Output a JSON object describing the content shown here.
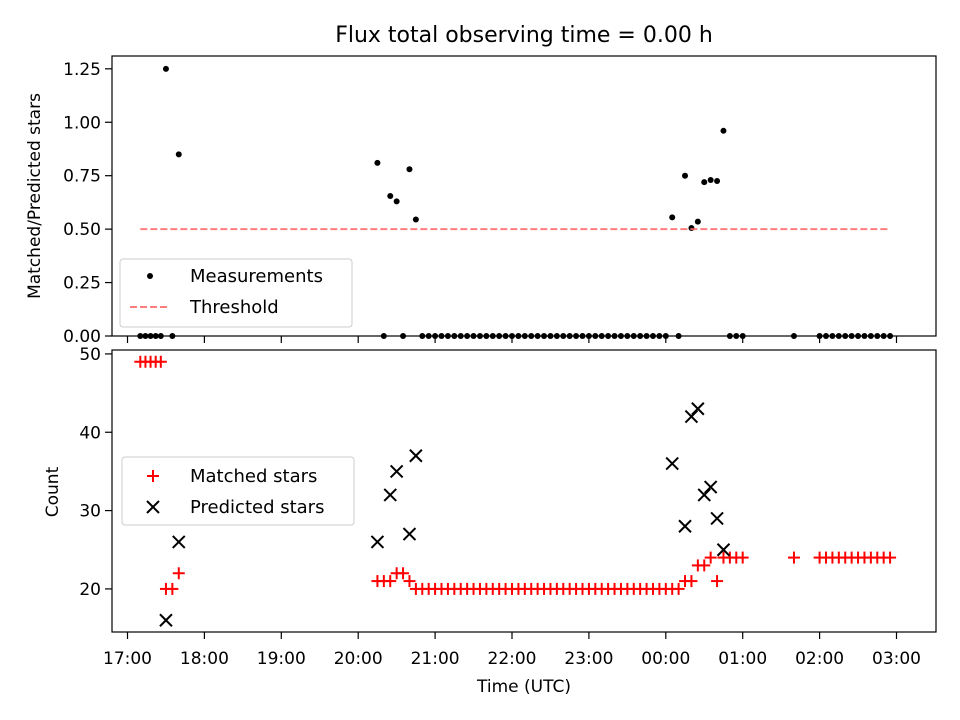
{
  "figure": {
    "title": "Flux total observing time = 0.00 h"
  },
  "chart_data": [
    {
      "type": "scatter",
      "title": "Flux total observing time = 0.00 h",
      "xlabel": "",
      "ylabel": "Matched/Predicted stars",
      "xlim": [
        "17:00",
        "03:00"
      ],
      "ylim": [
        0,
        1.31
      ],
      "yticks": [
        0.0,
        0.25,
        0.5,
        0.75,
        1.0,
        1.25
      ],
      "grid": false,
      "legend_position": "lower-left",
      "series": [
        {
          "name": "Measurements",
          "style": "dot",
          "color": "#000000",
          "points": [
            [
              "17:10",
              0
            ],
            [
              "17:14",
              0
            ],
            [
              "17:18",
              0
            ],
            [
              "17:22",
              0
            ],
            [
              "17:26",
              0
            ],
            [
              "17:30",
              1.25
            ],
            [
              "17:35",
              0
            ],
            [
              "17:40",
              0.85
            ],
            [
              "20:15",
              0.81
            ],
            [
              "20:20",
              0
            ],
            [
              "20:25",
              0.655
            ],
            [
              "20:30",
              0.63
            ],
            [
              "20:35",
              0
            ],
            [
              "20:40",
              0.78
            ],
            [
              "20:45",
              0.545
            ],
            [
              "20:50",
              0
            ],
            [
              "20:55",
              0
            ],
            [
              "21:00",
              0
            ],
            [
              "21:05",
              0
            ],
            [
              "21:10",
              0
            ],
            [
              "21:15",
              0
            ],
            [
              "21:20",
              0
            ],
            [
              "21:25",
              0
            ],
            [
              "21:30",
              0
            ],
            [
              "21:35",
              0
            ],
            [
              "21:40",
              0
            ],
            [
              "21:45",
              0
            ],
            [
              "21:50",
              0
            ],
            [
              "21:55",
              0
            ],
            [
              "22:00",
              0
            ],
            [
              "22:05",
              0
            ],
            [
              "22:10",
              0
            ],
            [
              "22:15",
              0
            ],
            [
              "22:20",
              0
            ],
            [
              "22:25",
              0
            ],
            [
              "22:30",
              0
            ],
            [
              "22:35",
              0
            ],
            [
              "22:40",
              0
            ],
            [
              "22:45",
              0
            ],
            [
              "22:50",
              0
            ],
            [
              "22:55",
              0
            ],
            [
              "23:00",
              0
            ],
            [
              "23:05",
              0
            ],
            [
              "23:10",
              0
            ],
            [
              "23:15",
              0
            ],
            [
              "23:20",
              0
            ],
            [
              "23:25",
              0
            ],
            [
              "23:30",
              0
            ],
            [
              "23:35",
              0
            ],
            [
              "23:40",
              0
            ],
            [
              "23:45",
              0
            ],
            [
              "23:50",
              0
            ],
            [
              "23:55",
              0
            ],
            [
              "00:00",
              0
            ],
            [
              "00:05",
              0.555
            ],
            [
              "00:10",
              0
            ],
            [
              "00:15",
              0.75
            ],
            [
              "00:20",
              0.505
            ],
            [
              "00:25",
              0.535
            ],
            [
              "00:30",
              0.72
            ],
            [
              "00:35",
              0.73
            ],
            [
              "00:40",
              0.725
            ],
            [
              "00:45",
              0.96
            ],
            [
              "00:50",
              0
            ],
            [
              "00:55",
              0
            ],
            [
              "01:00",
              0
            ],
            [
              "01:40",
              0
            ],
            [
              "02:00",
              0
            ],
            [
              "02:05",
              0
            ],
            [
              "02:10",
              0
            ],
            [
              "02:15",
              0
            ],
            [
              "02:20",
              0
            ],
            [
              "02:25",
              0
            ],
            [
              "02:30",
              0
            ],
            [
              "02:35",
              0
            ],
            [
              "02:40",
              0
            ],
            [
              "02:45",
              0
            ],
            [
              "02:50",
              0
            ],
            [
              "02:55",
              0
            ]
          ]
        },
        {
          "name": "Threshold",
          "style": "dashed-line",
          "color": "#ff6666",
          "points": [
            [
              "17:10",
              0.5
            ],
            [
              "02:55",
              0.5
            ]
          ]
        }
      ]
    },
    {
      "type": "scatter",
      "title": "",
      "xlabel": "Time (UTC)",
      "ylabel": "Count",
      "xlim": [
        "17:00",
        "03:00"
      ],
      "ylim": [
        14.5,
        50.5
      ],
      "yticks": [
        20,
        30,
        40,
        50
      ],
      "xticks": [
        "17:00",
        "18:00",
        "19:00",
        "20:00",
        "21:00",
        "22:00",
        "23:00",
        "00:00",
        "01:00",
        "02:00",
        "03:00"
      ],
      "grid": false,
      "legend_position": "center-left",
      "series": [
        {
          "name": "Matched stars",
          "style": "plus",
          "color": "#ff0000",
          "points": [
            [
              "17:10",
              49
            ],
            [
              "17:14",
              49
            ],
            [
              "17:18",
              49
            ],
            [
              "17:22",
              49
            ],
            [
              "17:26",
              49
            ],
            [
              "17:30",
              20
            ],
            [
              "17:35",
              20
            ],
            [
              "17:40",
              22
            ],
            [
              "20:15",
              21
            ],
            [
              "20:20",
              21
            ],
            [
              "20:25",
              21
            ],
            [
              "20:30",
              22
            ],
            [
              "20:35",
              22
            ],
            [
              "20:40",
              21
            ],
            [
              "20:45",
              20
            ],
            [
              "20:50",
              20
            ],
            [
              "20:55",
              20
            ],
            [
              "21:00",
              20
            ],
            [
              "21:05",
              20
            ],
            [
              "21:10",
              20
            ],
            [
              "21:15",
              20
            ],
            [
              "21:20",
              20
            ],
            [
              "21:25",
              20
            ],
            [
              "21:30",
              20
            ],
            [
              "21:35",
              20
            ],
            [
              "21:40",
              20
            ],
            [
              "21:45",
              20
            ],
            [
              "21:50",
              20
            ],
            [
              "21:55",
              20
            ],
            [
              "22:00",
              20
            ],
            [
              "22:05",
              20
            ],
            [
              "22:10",
              20
            ],
            [
              "22:15",
              20
            ],
            [
              "22:20",
              20
            ],
            [
              "22:25",
              20
            ],
            [
              "22:30",
              20
            ],
            [
              "22:35",
              20
            ],
            [
              "22:40",
              20
            ],
            [
              "22:45",
              20
            ],
            [
              "22:50",
              20
            ],
            [
              "22:55",
              20
            ],
            [
              "23:00",
              20
            ],
            [
              "23:05",
              20
            ],
            [
              "23:10",
              20
            ],
            [
              "23:15",
              20
            ],
            [
              "23:20",
              20
            ],
            [
              "23:25",
              20
            ],
            [
              "23:30",
              20
            ],
            [
              "23:35",
              20
            ],
            [
              "23:40",
              20
            ],
            [
              "23:45",
              20
            ],
            [
              "23:50",
              20
            ],
            [
              "23:55",
              20
            ],
            [
              "00:00",
              20
            ],
            [
              "00:05",
              20
            ],
            [
              "00:10",
              20
            ],
            [
              "00:15",
              21
            ],
            [
              "00:20",
              21
            ],
            [
              "00:25",
              23
            ],
            [
              "00:30",
              23
            ],
            [
              "00:35",
              24
            ],
            [
              "00:40",
              21
            ],
            [
              "00:45",
              24
            ],
            [
              "00:50",
              24
            ],
            [
              "00:55",
              24
            ],
            [
              "01:00",
              24
            ],
            [
              "01:40",
              24
            ],
            [
              "02:00",
              24
            ],
            [
              "02:05",
              24
            ],
            [
              "02:10",
              24
            ],
            [
              "02:15",
              24
            ],
            [
              "02:20",
              24
            ],
            [
              "02:25",
              24
            ],
            [
              "02:30",
              24
            ],
            [
              "02:35",
              24
            ],
            [
              "02:40",
              24
            ],
            [
              "02:45",
              24
            ],
            [
              "02:50",
              24
            ],
            [
              "02:55",
              24
            ]
          ]
        },
        {
          "name": "Predicted stars",
          "style": "cross",
          "color": "#000000",
          "points": [
            [
              "17:30",
              16
            ],
            [
              "17:40",
              26
            ],
            [
              "20:15",
              26
            ],
            [
              "20:25",
              32
            ],
            [
              "20:30",
              35
            ],
            [
              "20:40",
              27
            ],
            [
              "20:45",
              37
            ],
            [
              "00:05",
              36
            ],
            [
              "00:15",
              28
            ],
            [
              "00:20",
              42
            ],
            [
              "00:25",
              43
            ],
            [
              "00:30",
              32
            ],
            [
              "00:35",
              33
            ],
            [
              "00:40",
              29
            ],
            [
              "00:45",
              25
            ]
          ]
        }
      ]
    }
  ]
}
